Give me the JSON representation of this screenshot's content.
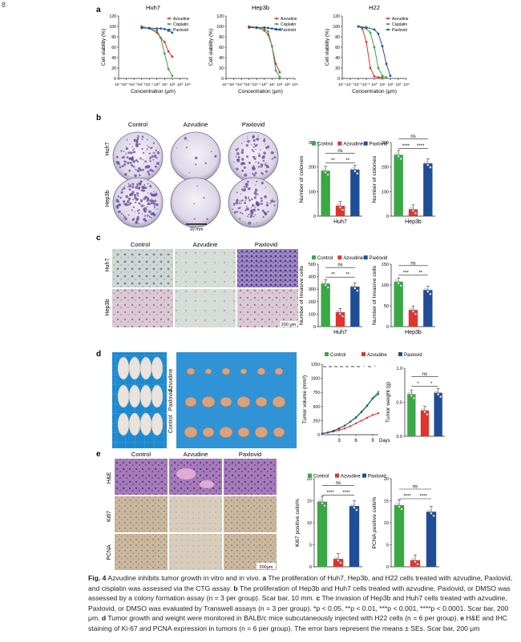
{
  "page_number": "8",
  "colors": {
    "control": "#39a845",
    "azvudine": "#e1342c",
    "paxlovid": "#1f4e96",
    "cisplatin": "#3aa548",
    "micro_purple": "#6a4c9c",
    "microscope_bg": "#cdd8cf",
    "dish_blue": "#1d8ad0"
  },
  "panels": {
    "a": "a",
    "b": "b",
    "c": "c",
    "d": "d",
    "e": "e"
  },
  "legend3": {
    "control": "Control",
    "azvudine": "Azvudine",
    "paxlovid": "Paxlovid"
  },
  "group_labels": [
    "Control",
    "Azvudine",
    "Paxlovid"
  ],
  "row_labels": {
    "huh7": "Huh7",
    "hep3b": "Hep3b"
  },
  "b_scale": "10 mm",
  "c_scale": "200 μm",
  "d_row_labels": [
    "Azvudine",
    "Paxlovid",
    "Control"
  ],
  "e_row_labels": [
    "H&E",
    "Ki67",
    "PCNA"
  ],
  "e_scale": "200μm",
  "sig": {
    "ns": "ns",
    "s1": "*",
    "s2": "**",
    "s3": "***",
    "s4": "****"
  },
  "chart_data": [
    {
      "panel": "a",
      "type": "line",
      "title": "Huh7",
      "xlabel": "Concentration (μm)",
      "ylabel": "Cell viability (%)",
      "ylim": [
        0,
        120
      ],
      "x_ticks": [
        "10⁻⁵",
        "10⁻⁴",
        "10⁻³",
        "10⁻²",
        "10⁻¹",
        "10⁰",
        "10¹",
        "10²",
        "10³",
        "10⁴"
      ],
      "y_ticks": [
        "0",
        "20",
        "40",
        "60",
        "80",
        "100",
        "120"
      ],
      "legend": [
        "Azvudine",
        "Cisplatin",
        "Paxlovid"
      ],
      "series": [
        {
          "name": "Azvudine",
          "x": [
            -2,
            -1,
            0,
            0.5,
            1,
            1.5,
            2
          ],
          "y": [
            100,
            96,
            88,
            78,
            70,
            52,
            42
          ]
        },
        {
          "name": "Cisplatin",
          "x": [
            -2,
            -1,
            0,
            0.5,
            1,
            1.5,
            2
          ],
          "y": [
            98,
            96,
            92,
            78,
            48,
            18,
            5
          ]
        },
        {
          "name": "Paxlovid",
          "x": [
            -2,
            -1,
            0,
            0.5,
            1,
            1.5,
            2
          ],
          "y": [
            97,
            97,
            96,
            96,
            95,
            92,
            88
          ]
        }
      ]
    },
    {
      "panel": "a",
      "type": "line",
      "title": "Hep3b",
      "xlabel": "Concentration (μm)",
      "ylabel": "Cell viability (%)",
      "ylim": [
        0,
        120
      ],
      "x_ticks": [
        "10⁻⁵",
        "10⁻⁴",
        "10⁻³",
        "10⁻²",
        "10⁻¹",
        "10⁰",
        "10¹",
        "10²",
        "10³",
        "10⁴"
      ],
      "y_ticks": [
        "0",
        "20",
        "40",
        "60",
        "80",
        "100",
        "120"
      ],
      "legend": [
        "Azvudine",
        "Cisplatin",
        "Paxlovid"
      ],
      "series": [
        {
          "name": "Azvudine",
          "x": [
            -2,
            -1,
            0,
            0.5,
            1,
            1.5,
            2
          ],
          "y": [
            100,
            98,
            92,
            84,
            62,
            28,
            12
          ]
        },
        {
          "name": "Cisplatin",
          "x": [
            -2,
            -1,
            0,
            0.5,
            1,
            1.5,
            2
          ],
          "y": [
            98,
            97,
            96,
            90,
            62,
            15,
            3
          ]
        },
        {
          "name": "Paxlovid",
          "x": [
            -2,
            -1,
            0,
            0.5,
            1,
            1.5,
            2
          ],
          "y": [
            98,
            98,
            98,
            97,
            96,
            95,
            94
          ]
        }
      ]
    },
    {
      "panel": "a",
      "type": "line",
      "title": "H22",
      "xlabel": "Concentration (μm)",
      "ylabel": "Cell viability (%)",
      "ylim": [
        0,
        120
      ],
      "x_ticks": [
        "10⁻⁴",
        "10⁻³",
        "10⁻²",
        "10⁻¹",
        "10⁰",
        "10¹",
        "10²",
        "10³",
        "10⁴"
      ],
      "y_ticks": [
        "0",
        "20",
        "40",
        "60",
        "80",
        "100",
        "120"
      ],
      "legend": [
        "Azvudine",
        "Cisplatin",
        "Paxlovid"
      ],
      "series": [
        {
          "name": "Azvudine",
          "x": [
            -2,
            -1.5,
            -1,
            -0.5,
            0,
            0.5,
            1
          ],
          "y": [
            100,
            96,
            70,
            20,
            4,
            2,
            2
          ]
        },
        {
          "name": "Cisplatin",
          "x": [
            -2,
            -1,
            -0.5,
            0,
            0.5,
            1,
            1.5
          ],
          "y": [
            100,
            96,
            88,
            60,
            20,
            5,
            2
          ]
        },
        {
          "name": "Paxlovid",
          "x": [
            -2,
            -1,
            0,
            0.5,
            1,
            1.5,
            2
          ],
          "y": [
            100,
            98,
            94,
            86,
            62,
            28,
            5
          ]
        }
      ]
    },
    {
      "panel": "b",
      "type": "bar",
      "ylabel": "Number of colonies",
      "xlabel": "Huh7",
      "ylim": [
        0,
        300
      ],
      "y_ticks": [
        "0",
        "100",
        "200",
        "300"
      ],
      "categories": [
        "Control",
        "Azvudine",
        "Paxlovid"
      ],
      "values": [
        185,
        42,
        190
      ],
      "sig": [
        {
          "pair": [
            0,
            1
          ],
          "label": "**"
        },
        {
          "pair": [
            1,
            2
          ],
          "label": "**"
        },
        {
          "pair": [
            0,
            2
          ],
          "label": "ns"
        }
      ]
    },
    {
      "panel": "b",
      "type": "bar",
      "ylabel": "Number of colonies",
      "xlabel": "Hep3b",
      "ylim": [
        0,
        300
      ],
      "y_ticks": [
        "0",
        "100",
        "200",
        "300"
      ],
      "categories": [
        "Control",
        "Azvudine",
        "Paxlovid"
      ],
      "values": [
        250,
        28,
        215
      ],
      "sig": [
        {
          "pair": [
            0,
            1
          ],
          "label": "****"
        },
        {
          "pair": [
            1,
            2
          ],
          "label": "****"
        },
        {
          "pair": [
            0,
            2
          ],
          "label": "ns"
        }
      ]
    },
    {
      "panel": "c",
      "type": "bar",
      "ylabel": "Number of Invasive cells",
      "xlabel": "Huh7",
      "ylim": [
        0,
        500
      ],
      "y_ticks": [
        "0",
        "100",
        "200",
        "300",
        "400",
        "500"
      ],
      "categories": [
        "Control",
        "Azvudine",
        "Paxlovid"
      ],
      "values": [
        345,
        115,
        320
      ],
      "sig": [
        {
          "pair": [
            0,
            1
          ],
          "label": "**"
        },
        {
          "pair": [
            1,
            2
          ],
          "label": "**"
        },
        {
          "pair": [
            0,
            2
          ],
          "label": "ns"
        }
      ]
    },
    {
      "panel": "c",
      "type": "bar",
      "ylabel": "Number of Invasive cells",
      "xlabel": "Hep3b",
      "ylim": [
        0,
        150
      ],
      "y_ticks": [
        "0",
        "50",
        "100",
        "150"
      ],
      "categories": [
        "Control",
        "Azvudine",
        "Paxlovid"
      ],
      "values": [
        108,
        40,
        88
      ],
      "sig": [
        {
          "pair": [
            0,
            1
          ],
          "label": "***"
        },
        {
          "pair": [
            1,
            2
          ],
          "label": "**"
        },
        {
          "pair": [
            0,
            2
          ],
          "label": "ns"
        }
      ]
    },
    {
      "panel": "d",
      "type": "line",
      "ylabel": "Tumor volume (mm³)",
      "xlabel": "Days",
      "ylim": [
        0,
        1250
      ],
      "y_ticks": [
        "0",
        "250",
        "500",
        "750",
        "1000",
        "1250"
      ],
      "x_ticks": [
        "3",
        "6",
        "9"
      ],
      "top_labels": [
        "ns",
        "ns",
        "ns",
        "ns",
        "ns",
        "ns",
        "ns",
        "*",
        "ns",
        "*"
      ],
      "series": [
        {
          "name": "Control",
          "x": [
            0,
            1,
            2,
            3,
            4,
            5,
            6,
            7,
            8,
            9,
            10
          ],
          "y": [
            20,
            40,
            70,
            110,
            160,
            230,
            310,
            410,
            520,
            650,
            760
          ]
        },
        {
          "name": "Azvudine",
          "x": [
            0,
            1,
            2,
            3,
            4,
            5,
            6,
            7,
            8,
            9,
            10
          ],
          "y": [
            20,
            35,
            55,
            80,
            110,
            150,
            200,
            250,
            300,
            350,
            380
          ]
        },
        {
          "name": "Paxlovid",
          "x": [
            0,
            1,
            2,
            3,
            4,
            5,
            6,
            7,
            8,
            9,
            10
          ],
          "y": [
            20,
            40,
            70,
            110,
            160,
            230,
            300,
            400,
            510,
            640,
            720
          ]
        }
      ]
    },
    {
      "panel": "d",
      "type": "bar",
      "ylabel": "Tumor weight (g)",
      "ylim": [
        0,
        1.0
      ],
      "y_ticks": [
        "0.0",
        "0.5",
        "1.0"
      ],
      "categories": [
        "Control",
        "Azvudine",
        "Paxlovid"
      ],
      "values": [
        0.62,
        0.38,
        0.64
      ],
      "sig": [
        {
          "pair": [
            0,
            1
          ],
          "label": "*"
        },
        {
          "pair": [
            1,
            2
          ],
          "label": "*"
        },
        {
          "pair": [
            0,
            2
          ],
          "label": "ns"
        }
      ]
    },
    {
      "panel": "e",
      "type": "bar",
      "ylabel": "Ki67 positive cells%",
      "ylim": [
        0,
        20
      ],
      "y_ticks": [
        "0",
        "5",
        "10",
        "15",
        "20"
      ],
      "categories": [
        "Control",
        "Azvudine",
        "Paxlovid"
      ],
      "values": [
        14.8,
        1.8,
        13.8
      ],
      "sig": [
        {
          "pair": [
            0,
            1
          ],
          "label": "****"
        },
        {
          "pair": [
            1,
            2
          ],
          "label": "****"
        },
        {
          "pair": [
            0,
            2
          ],
          "label": "ns"
        }
      ]
    },
    {
      "panel": "e",
      "type": "bar",
      "ylabel": "PCNA positive cells%",
      "ylim": [
        0,
        20
      ],
      "y_ticks": [
        "0",
        "5",
        "10",
        "15",
        "20"
      ],
      "categories": [
        "Control",
        "Azvudine",
        "Paxlovid"
      ],
      "values": [
        14.0,
        1.5,
        12.5
      ],
      "sig": [
        {
          "pair": [
            0,
            1
          ],
          "label": "****"
        },
        {
          "pair": [
            1,
            2
          ],
          "label": "****"
        },
        {
          "pair": [
            0,
            2
          ],
          "label": "ns"
        }
      ]
    }
  ],
  "caption": {
    "fig": "Fig. 4",
    "t1": "  Azvudine inhibits tumor growth in vitro and in vivo. ",
    "a": "a",
    "t2": " The proliferation of Huh7, Hep3b, and H22 cells treated with azvudine, Paxlovid, and cisplatin was assessed via the CTG assay. ",
    "b": "b",
    "t3": " The proliferation of Hep3b and Huh7 cells treated with azvudine, Paxlovid, or DMSO was assessed by a colony formation assay (n = 3 per group). Scar bar, 10 mm. ",
    "c": "c",
    "t4": " The invasion of Hep3b and Huh7 cells treated with azvudine, Paxlovid, or DMSO was evaluated by Transwell assays (n = 3 per group). *p < 0.05, **p < 0.01, ***p < 0.001, ****p < 0.0001. Scar bar, 200 μm. ",
    "d": "d",
    "t5": " Tumor growth and weight were monitored in BALB/c mice subcutaneously injected with H22 cells (n = 6 per group). ",
    "e": "e",
    "t6": " H&E and IHC staining of Ki-67 and PCNA expression in tumors (n = 6 per group). The error bars represent the means ± SEs. Scar bar, 200 μm"
  }
}
